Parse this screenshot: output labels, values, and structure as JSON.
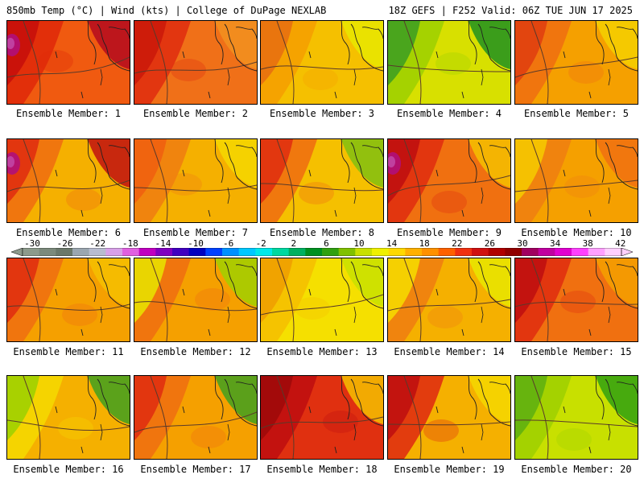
{
  "header": {
    "left": "850mb Temp (°C) | Wind (kts) | College of DuPage NEXLAB",
    "right": "18Z GEFS | F252 Valid: 06Z TUE JUN 17 2025"
  },
  "colorbar": {
    "labels": [
      "-30",
      "-26",
      "-22",
      "-18",
      "-14",
      "-10",
      "-6",
      "-2",
      "2",
      "6",
      "10",
      "14",
      "18",
      "22",
      "26",
      "30",
      "34",
      "38",
      "42"
    ],
    "colors": [
      "#8c9a8c",
      "#7c8a7c",
      "#6a786a",
      "#9aa6b0",
      "#b8bcd0",
      "#d8a0e8",
      "#e060e0",
      "#c000c0",
      "#8000c0",
      "#4000c0",
      "#0000c0",
      "#0040ff",
      "#0090ff",
      "#00c8ff",
      "#00e8e8",
      "#00d8a0",
      "#00b060",
      "#009020",
      "#30a010",
      "#80c000",
      "#c8e000",
      "#f0f000",
      "#ffd800",
      "#ffb000",
      "#ff9000",
      "#ff6000",
      "#f03010",
      "#d01010",
      "#b00000",
      "#900000",
      "#a00060",
      "#c000a0",
      "#e000d0",
      "#ff40ff",
      "#ffa0ff",
      "#ffd0ff"
    ]
  },
  "members": [
    {
      "label": "Ensemble Member: 1",
      "base": "#f05a10",
      "accents": [
        "#e02a0a",
        "#c8100a",
        "#b40a1e"
      ],
      "hot": true
    },
    {
      "label": "Ensemble Member: 2",
      "base": "#f07018",
      "accents": [
        "#e03010",
        "#cc1a0a",
        "#f29020"
      ],
      "hot": false
    },
    {
      "label": "Ensemble Member: 3",
      "base": "#f5c000",
      "accents": [
        "#f5a000",
        "#e87010",
        "#e8e800"
      ],
      "hot": false
    },
    {
      "label": "Ensemble Member: 4",
      "base": "#d8e000",
      "accents": [
        "#a0d000",
        "#40a020",
        "#209020"
      ],
      "hot": false
    },
    {
      "label": "Ensemble Member: 5",
      "base": "#f5a000",
      "accents": [
        "#f07010",
        "#e04010",
        "#f5d000"
      ],
      "hot": false
    },
    {
      "label": "Ensemble Member: 6",
      "base": "#f5b000",
      "accents": [
        "#f07010",
        "#e03010",
        "#c01010"
      ],
      "hot": true
    },
    {
      "label": "Ensemble Member: 7",
      "base": "#f5b000",
      "accents": [
        "#f08010",
        "#f06010",
        "#f5d800"
      ],
      "hot": false
    },
    {
      "label": "Ensemble Member: 8",
      "base": "#f5c000",
      "accents": [
        "#f07010",
        "#e03010",
        "#80c010"
      ],
      "hot": false
    },
    {
      "label": "Ensemble Member: 9",
      "base": "#f07010",
      "accents": [
        "#e03010",
        "#c01010",
        "#f5c000"
      ],
      "hot": true
    },
    {
      "label": "Ensemble Member: 10",
      "base": "#f5a000",
      "accents": [
        "#f08010",
        "#f5c800",
        "#f07010"
      ],
      "hot": false
    },
    {
      "label": "Ensemble Member: 11",
      "base": "#f5a000",
      "accents": [
        "#f07010",
        "#e03010",
        "#f5c000"
      ],
      "hot": false
    },
    {
      "label": "Ensemble Member: 12",
      "base": "#f5a000",
      "accents": [
        "#f07010",
        "#e8e000",
        "#a0d000"
      ],
      "hot": false
    },
    {
      "label": "Ensemble Member: 13",
      "base": "#f5e000",
      "accents": [
        "#f5c000",
        "#f0a000",
        "#c8e000"
      ],
      "hot": false
    },
    {
      "label": "Ensemble Member: 14",
      "base": "#f5b000",
      "accents": [
        "#f08010",
        "#f5d800",
        "#e8e800"
      ],
      "hot": false
    },
    {
      "label": "Ensemble Member: 15",
      "base": "#f07010",
      "accents": [
        "#e03010",
        "#c01010",
        "#f5a000"
      ],
      "hot": false
    },
    {
      "label": "Ensemble Member: 16",
      "base": "#f5b000",
      "accents": [
        "#f5d800",
        "#a0d000",
        "#40a020"
      ],
      "hot": false
    },
    {
      "label": "Ensemble Member: 17",
      "base": "#f5a000",
      "accents": [
        "#f07010",
        "#e03010",
        "#40a020"
      ],
      "hot": false
    },
    {
      "label": "Ensemble Member: 18",
      "base": "#e03010",
      "accents": [
        "#c01010",
        "#a00a0a",
        "#f5c000"
      ],
      "hot": false
    },
    {
      "label": "Ensemble Member: 19",
      "base": "#f5b000",
      "accents": [
        "#e03010",
        "#c01010",
        "#f5d800"
      ],
      "hot": false
    },
    {
      "label": "Ensemble Member: 20",
      "base": "#c8e000",
      "accents": [
        "#a0d000",
        "#60b010",
        "#30a010"
      ],
      "hot": false
    }
  ]
}
